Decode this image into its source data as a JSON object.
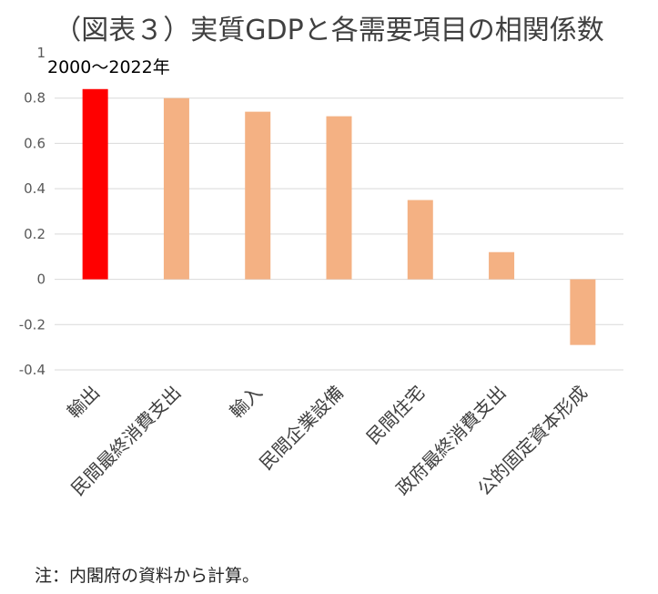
{
  "chart_data": {
    "type": "bar",
    "title": "（図表３）実質GDPと各需要項目の相関係数",
    "subtitle": "2000〜2022年",
    "categories": [
      "輸出",
      "民間最終消費支出",
      "輸入",
      "民間企業設備",
      "民間住宅",
      "政府最終消費支出",
      "公的固定資本形成"
    ],
    "values": [
      0.84,
      0.8,
      0.74,
      0.72,
      0.35,
      0.12,
      -0.29
    ],
    "highlight_index": 0,
    "colors": {
      "highlight": "#ff0000",
      "default": "#f4b183",
      "grid": "#d9d9d9"
    },
    "ylim": [
      -0.4,
      1.0
    ],
    "yticks": [
      -0.4,
      -0.2,
      0,
      0.2,
      0.4,
      0.6,
      0.8,
      1
    ],
    "ytick_labels": [
      "-0.4",
      "-0.2",
      "0",
      "0.2",
      "0.4",
      "0.6",
      "0.8",
      "1"
    ],
    "grid": true,
    "legend": "none",
    "xlabel": "",
    "ylabel": ""
  },
  "note": "注：内閣府の資料から計算。"
}
